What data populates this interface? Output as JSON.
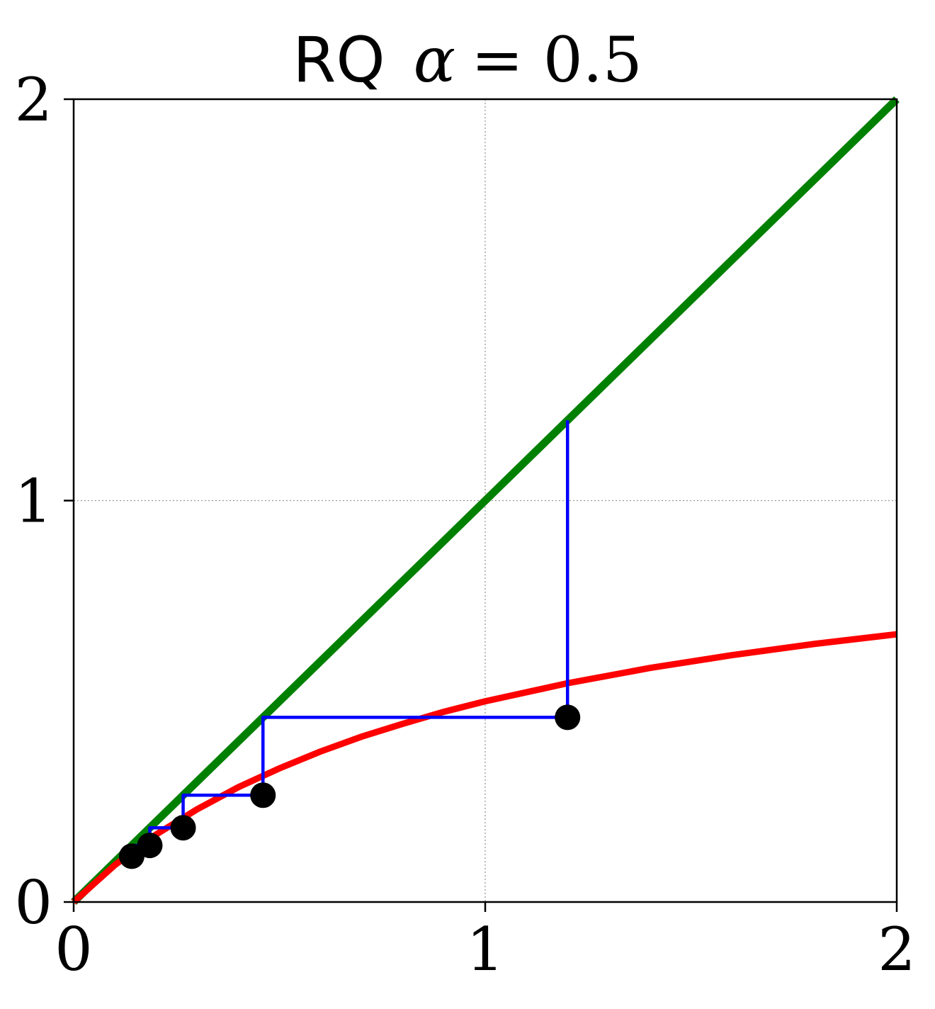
{
  "chart_data": {
    "type": "line",
    "title": {
      "prefix": "RQ",
      "symbol": "α",
      "rest": " = 0.5"
    },
    "xlabel": "",
    "ylabel": "",
    "xlim": [
      0,
      2
    ],
    "ylim": [
      0,
      2
    ],
    "xticks": [
      0,
      1,
      2
    ],
    "yticks": [
      0,
      1,
      2
    ],
    "x_tick_labels": [
      "0",
      "1",
      "2"
    ],
    "y_tick_labels": [
      "0",
      "1",
      "2"
    ],
    "grid": true,
    "series": [
      {
        "color": "#008000",
        "kind": "diagonal y = x",
        "points": [
          [
            0,
            0
          ],
          [
            2,
            2
          ]
        ]
      },
      {
        "color": "#ff0000",
        "kind": "curve",
        "points": [
          [
            0.0,
            0.0
          ],
          [
            0.1,
            0.092
          ],
          [
            0.2,
            0.168
          ],
          [
            0.3,
            0.231
          ],
          [
            0.4,
            0.286
          ],
          [
            0.5,
            0.333
          ],
          [
            0.6,
            0.375
          ],
          [
            0.7,
            0.412
          ],
          [
            0.8,
            0.444
          ],
          [
            0.9,
            0.474
          ],
          [
            1.0,
            0.5
          ],
          [
            1.2,
            0.545
          ],
          [
            1.4,
            0.583
          ],
          [
            1.6,
            0.615
          ],
          [
            1.8,
            0.643
          ],
          [
            2.0,
            0.667
          ]
        ]
      },
      {
        "color": "#0000ff",
        "kind": "cobweb",
        "points": [
          [
            1.2,
            1.2
          ],
          [
            1.2,
            0.46
          ],
          [
            0.46,
            0.46
          ],
          [
            0.46,
            0.266
          ],
          [
            0.266,
            0.266
          ],
          [
            0.266,
            0.185
          ],
          [
            0.185,
            0.185
          ],
          [
            0.185,
            0.141
          ],
          [
            0.141,
            0.141
          ],
          [
            0.141,
            0.114
          ]
        ]
      },
      {
        "color": "#000000",
        "kind": "iterate markers",
        "points": [
          [
            1.2,
            0.46
          ],
          [
            0.46,
            0.266
          ],
          [
            0.266,
            0.185
          ],
          [
            0.185,
            0.141
          ],
          [
            0.141,
            0.114
          ]
        ]
      }
    ]
  }
}
